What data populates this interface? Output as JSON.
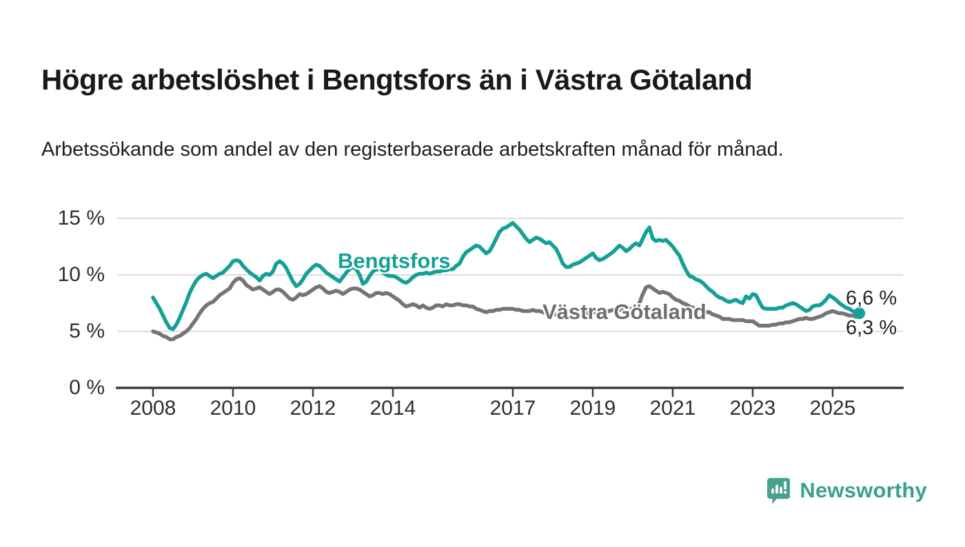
{
  "header": {
    "title": "Högre arbetslöshet i Bengtsfors än i Västra Götaland",
    "subtitle": "Arbetssökande som andel av den registerbaserade arbetskraften månad för månad."
  },
  "chart_data": {
    "type": "line",
    "title": "Högre arbetslöshet i Bengtsfors än i Västra Götaland",
    "subtitle": "Arbetssökande som andel av den registerbaserade arbetskraften månad för månad.",
    "grid": "horizontal-only",
    "legend": "inline-labels",
    "x_axis": {
      "frequency": "monthly",
      "start_year": 2008,
      "start_month": 1,
      "tick_years": [
        2008,
        2010,
        2012,
        2014,
        2017,
        2019,
        2021,
        2023,
        2025
      ],
      "tick_labels": [
        "2008",
        "2010",
        "2012",
        "2014",
        "2017",
        "2019",
        "2021",
        "2023",
        "2025"
      ]
    },
    "y_axis": {
      "unit": "%",
      "range": [
        0,
        16.8
      ],
      "tick_values": [
        15,
        10,
        5,
        0
      ],
      "tick_labels": [
        "15 %",
        "10 %",
        "5 %",
        "0 %"
      ],
      "gridline_values": [
        15,
        10,
        5
      ]
    },
    "series": [
      {
        "name": "Bengtsfors",
        "color": "#14a096",
        "end_label": "6,6 %",
        "end_value": 6.6,
        "end_dot": true,
        "values": [
          8.0,
          7.5,
          7.0,
          6.4,
          5.8,
          5.3,
          5.2,
          5.6,
          6.2,
          6.9,
          7.6,
          8.4,
          9.0,
          9.5,
          9.8,
          10.0,
          10.1,
          9.9,
          9.7,
          9.9,
          10.1,
          10.2,
          10.5,
          10.8,
          11.2,
          11.3,
          11.2,
          10.8,
          10.5,
          10.2,
          10.0,
          9.8,
          9.5,
          9.9,
          10.1,
          10.0,
          10.3,
          11.0,
          11.2,
          11.0,
          10.6,
          10.0,
          9.4,
          9.0,
          9.2,
          9.6,
          10.1,
          10.4,
          10.7,
          10.9,
          10.8,
          10.5,
          10.2,
          10.0,
          9.8,
          9.6,
          9.4,
          9.8,
          10.2,
          10.5,
          10.7,
          10.5,
          10.0,
          9.2,
          9.4,
          9.9,
          10.3,
          10.5,
          10.4,
          10.2,
          10.0,
          9.9,
          9.9,
          9.8,
          9.6,
          9.4,
          9.3,
          9.5,
          9.8,
          10.0,
          10.1,
          10.1,
          10.2,
          10.1,
          10.2,
          10.3,
          10.3,
          10.4,
          10.4,
          10.5,
          10.5,
          10.8,
          11.0,
          11.6,
          12.0,
          12.2,
          12.4,
          12.6,
          12.5,
          12.2,
          11.9,
          12.1,
          12.6,
          13.2,
          13.8,
          14.1,
          14.2,
          14.4,
          14.6,
          14.3,
          14.0,
          13.6,
          13.2,
          12.9,
          13.1,
          13.3,
          13.2,
          13.0,
          12.8,
          12.9,
          12.6,
          12.3,
          11.7,
          11.0,
          10.7,
          10.7,
          10.9,
          11.0,
          11.1,
          11.3,
          11.5,
          11.7,
          11.9,
          11.5,
          11.3,
          11.4,
          11.6,
          11.8,
          12.0,
          12.3,
          12.6,
          12.4,
          12.1,
          12.3,
          12.6,
          12.8,
          12.6,
          13.2,
          13.8,
          14.2,
          13.2,
          13.0,
          13.1,
          13.0,
          13.1,
          12.8,
          12.5,
          12.1,
          11.7,
          11.0,
          10.4,
          9.9,
          9.8,
          9.6,
          9.5,
          9.3,
          9.0,
          8.7,
          8.5,
          8.2,
          8.0,
          7.9,
          7.7,
          7.6,
          7.7,
          7.8,
          7.6,
          7.5,
          8.1,
          7.9,
          8.3,
          8.2,
          7.6,
          7.1,
          7.0,
          7.0,
          7.0,
          7.0,
          7.1,
          7.1,
          7.3,
          7.4,
          7.5,
          7.4,
          7.2,
          7.0,
          6.8,
          6.9,
          7.2,
          7.3,
          7.3,
          7.5,
          7.8,
          8.2,
          8.0,
          7.8,
          7.5,
          7.3,
          7.1,
          7.0,
          6.8,
          6.7,
          6.6
        ]
      },
      {
        "name": "Västra Götaland",
        "color": "#757575",
        "end_label": "6,3 %",
        "end_value": 6.3,
        "end_dot": false,
        "values": [
          5.0,
          4.9,
          4.8,
          4.6,
          4.5,
          4.3,
          4.3,
          4.5,
          4.6,
          4.8,
          5.0,
          5.3,
          5.7,
          6.1,
          6.6,
          7.0,
          7.3,
          7.5,
          7.6,
          7.9,
          8.2,
          8.4,
          8.6,
          8.8,
          9.3,
          9.6,
          9.7,
          9.5,
          9.1,
          8.9,
          8.7,
          8.8,
          8.9,
          8.7,
          8.5,
          8.3,
          8.5,
          8.7,
          8.7,
          8.5,
          8.2,
          7.9,
          7.8,
          8.0,
          8.3,
          8.2,
          8.3,
          8.5,
          8.7,
          8.9,
          9.0,
          8.8,
          8.5,
          8.4,
          8.5,
          8.6,
          8.5,
          8.3,
          8.5,
          8.7,
          8.8,
          8.8,
          8.7,
          8.5,
          8.3,
          8.1,
          8.2,
          8.4,
          8.4,
          8.3,
          8.4,
          8.3,
          8.1,
          7.9,
          7.7,
          7.4,
          7.2,
          7.3,
          7.4,
          7.3,
          7.1,
          7.3,
          7.1,
          7.0,
          7.1,
          7.3,
          7.3,
          7.2,
          7.4,
          7.3,
          7.3,
          7.4,
          7.4,
          7.3,
          7.3,
          7.2,
          7.2,
          7.0,
          6.9,
          6.8,
          6.7,
          6.8,
          6.8,
          6.9,
          6.9,
          7.0,
          7.0,
          7.0,
          7.0,
          6.9,
          6.9,
          6.8,
          6.8,
          6.8,
          6.9,
          6.8,
          6.8,
          6.7,
          6.6,
          6.6,
          6.5,
          6.5,
          6.4,
          6.4,
          6.3,
          6.3,
          6.4,
          6.4,
          6.5,
          6.5,
          6.6,
          6.6,
          6.7,
          6.7,
          6.6,
          6.7,
          6.8,
          6.8,
          6.9,
          6.9,
          6.9,
          6.9,
          7.0,
          7.0,
          7.0,
          7.0,
          7.5,
          8.3,
          8.9,
          9.0,
          8.8,
          8.6,
          8.4,
          8.5,
          8.4,
          8.3,
          8.0,
          7.8,
          7.7,
          7.5,
          7.4,
          7.2,
          7.1,
          7.0,
          6.9,
          6.8,
          6.7,
          6.7,
          6.5,
          6.4,
          6.3,
          6.1,
          6.1,
          6.1,
          6.0,
          6.0,
          6.0,
          6.0,
          5.9,
          5.9,
          5.9,
          5.7,
          5.5,
          5.5,
          5.5,
          5.5,
          5.6,
          5.6,
          5.7,
          5.7,
          5.8,
          5.8,
          5.9,
          6.0,
          6.1,
          6.1,
          6.2,
          6.1,
          6.1,
          6.2,
          6.3,
          6.4,
          6.6,
          6.7,
          6.8,
          6.7,
          6.6,
          6.6,
          6.5,
          6.4,
          6.4,
          6.3,
          6.3
        ]
      }
    ]
  },
  "theme": {
    "teal": "#14a096",
    "gray": "#757575",
    "axis_color": "#3c3c3c",
    "gridline_color": "#dcdcdc",
    "text_color": "#191919"
  },
  "footer": {
    "brand": "Newsworthy",
    "brand_color": "#3aa08d",
    "icon": "newsworthy-speech-bubble-chart-icon"
  }
}
